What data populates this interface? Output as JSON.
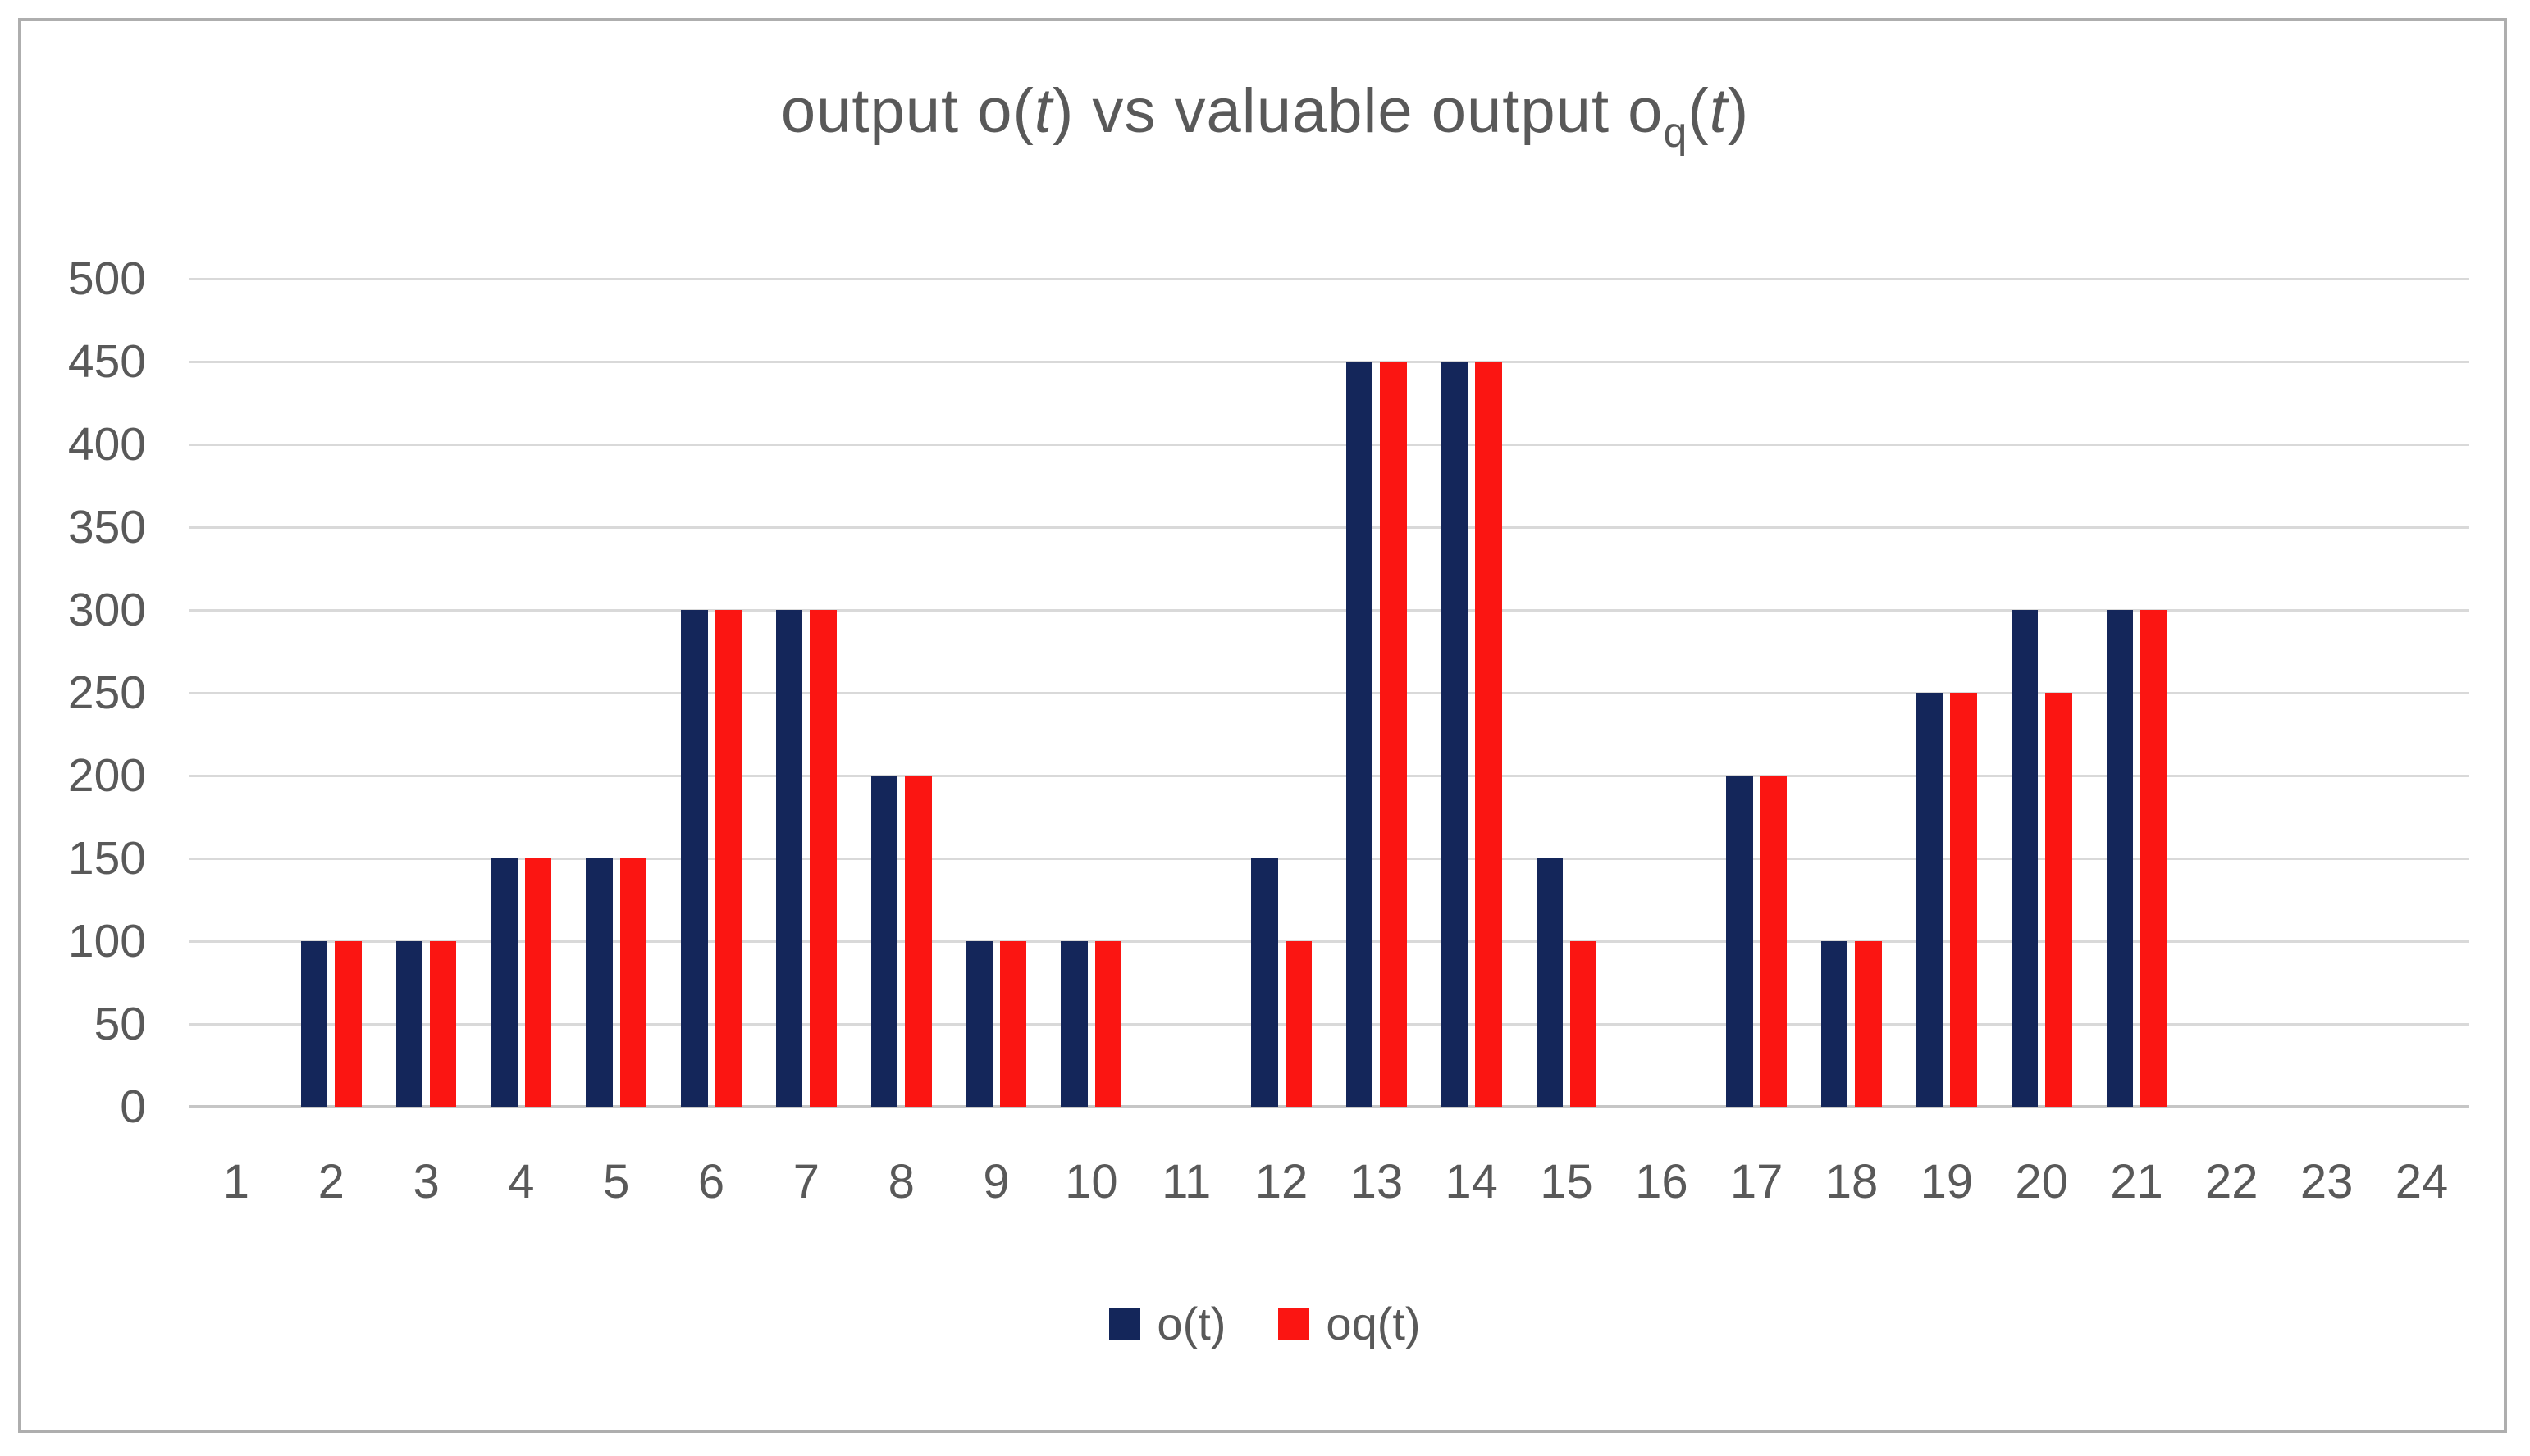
{
  "chart_data": {
    "type": "bar",
    "title": "output o(t) vs valuable output oq(t)",
    "title_segments": [
      {
        "text": "output o(",
        "style": "normal"
      },
      {
        "text": "t",
        "style": "italic"
      },
      {
        "text": ") vs valuable output o",
        "style": "normal"
      },
      {
        "text": "q",
        "style": "subscript"
      },
      {
        "text": "(",
        "style": "normal"
      },
      {
        "text": "t",
        "style": "italic"
      },
      {
        "text": ")",
        "style": "normal"
      }
    ],
    "categories": [
      "1",
      "2",
      "3",
      "4",
      "5",
      "6",
      "7",
      "8",
      "9",
      "10",
      "11",
      "12",
      "13",
      "14",
      "15",
      "16",
      "17",
      "18",
      "19",
      "20",
      "21",
      "22",
      "23",
      "24"
    ],
    "series": [
      {
        "name": "o(t)",
        "color": "#14265a",
        "values": [
          0,
          100,
          100,
          150,
          150,
          300,
          300,
          200,
          100,
          100,
          0,
          150,
          450,
          450,
          150,
          0,
          200,
          100,
          250,
          300,
          300,
          0,
          0,
          0
        ]
      },
      {
        "name": "oq(t)",
        "color": "#fb1512",
        "values": [
          0,
          100,
          100,
          150,
          150,
          300,
          300,
          200,
          100,
          100,
          0,
          100,
          450,
          450,
          100,
          0,
          200,
          100,
          250,
          250,
          300,
          0,
          0,
          0
        ]
      }
    ],
    "ylim": [
      0,
      500
    ],
    "ytick_step": 50,
    "y_tick_labels": [
      "0",
      "50",
      "100",
      "150",
      "200",
      "250",
      "300",
      "350",
      "400",
      "450",
      "500"
    ],
    "grid": true,
    "legend_position": "bottom",
    "colors": {
      "gridline": "#d9d9d9",
      "axis_line": "#c6c6c6",
      "text": "#595959",
      "frame_border": "#aeaeae",
      "background": "#ffffff"
    }
  }
}
